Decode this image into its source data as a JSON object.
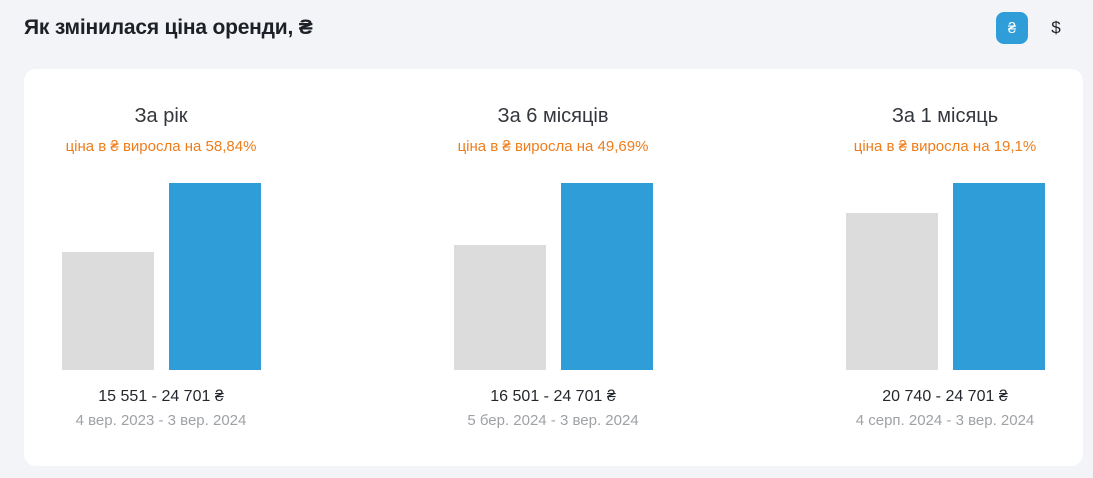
{
  "header": {
    "title": "Як змінилася ціна оренди, ₴",
    "currency_toggle": {
      "uah_label": "₴",
      "usd_label": "$",
      "selected": "₴"
    }
  },
  "colors": {
    "page_bg": "#f2f4f7",
    "card_bg": "#ffffff",
    "accent_blue": "#2e9dd8",
    "bar_gray": "#dcdcdc",
    "orange": "#ee7d1c",
    "text_dark": "#1d2026",
    "text_gray": "#9ea1a6"
  },
  "chart_data": {
    "type": "bar",
    "currency": "₴",
    "ylim": [
      0,
      24701
    ],
    "max_value": 24701,
    "legend_position": "none",
    "grid": false,
    "groups": [
      {
        "title": "За рік",
        "subtitle": "ціна в ₴ виросла на 58,84%",
        "change_percent": "58,84%",
        "values": [
          15551,
          24701
        ],
        "price_range": "15 551 - 24 701 ₴",
        "date_range": "4 вер. 2023 - 3 вер. 2024"
      },
      {
        "title": "За 6 місяців",
        "subtitle": "ціна в ₴ виросла на 49,69%",
        "change_percent": "49,69%",
        "values": [
          16501,
          24701
        ],
        "price_range": "16 501 - 24 701 ₴",
        "date_range": "5 бер. 2024 - 3 вер. 2024"
      },
      {
        "title": "За 1 місяць",
        "subtitle": "ціна в ₴ виросла на 19,1%",
        "change_percent": "19,1%",
        "values": [
          20740,
          24701
        ],
        "price_range": "20 740 - 24 701 ₴",
        "date_range": "4 серп. 2024 - 3 вер. 2024"
      }
    ]
  }
}
